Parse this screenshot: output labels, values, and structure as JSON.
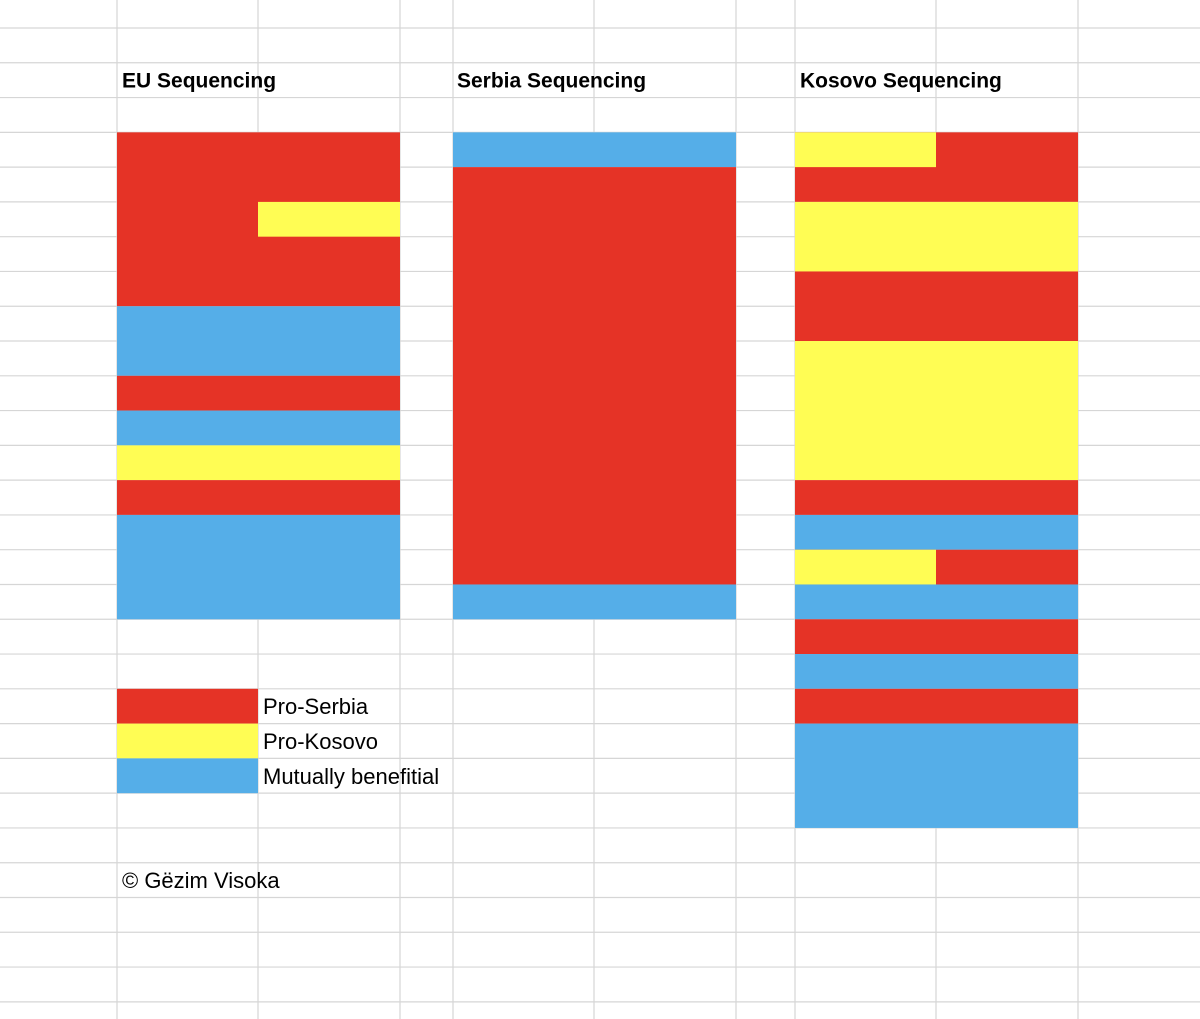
{
  "titles": [
    "EU Sequencing",
    "Serbia Sequencing",
    "Kosovo Sequencing"
  ],
  "legend": [
    "Pro-Serbia",
    "Pro-Kosovo",
    "Mutually benefitial"
  ],
  "copyright": "© Gëzim Visoka"
}
